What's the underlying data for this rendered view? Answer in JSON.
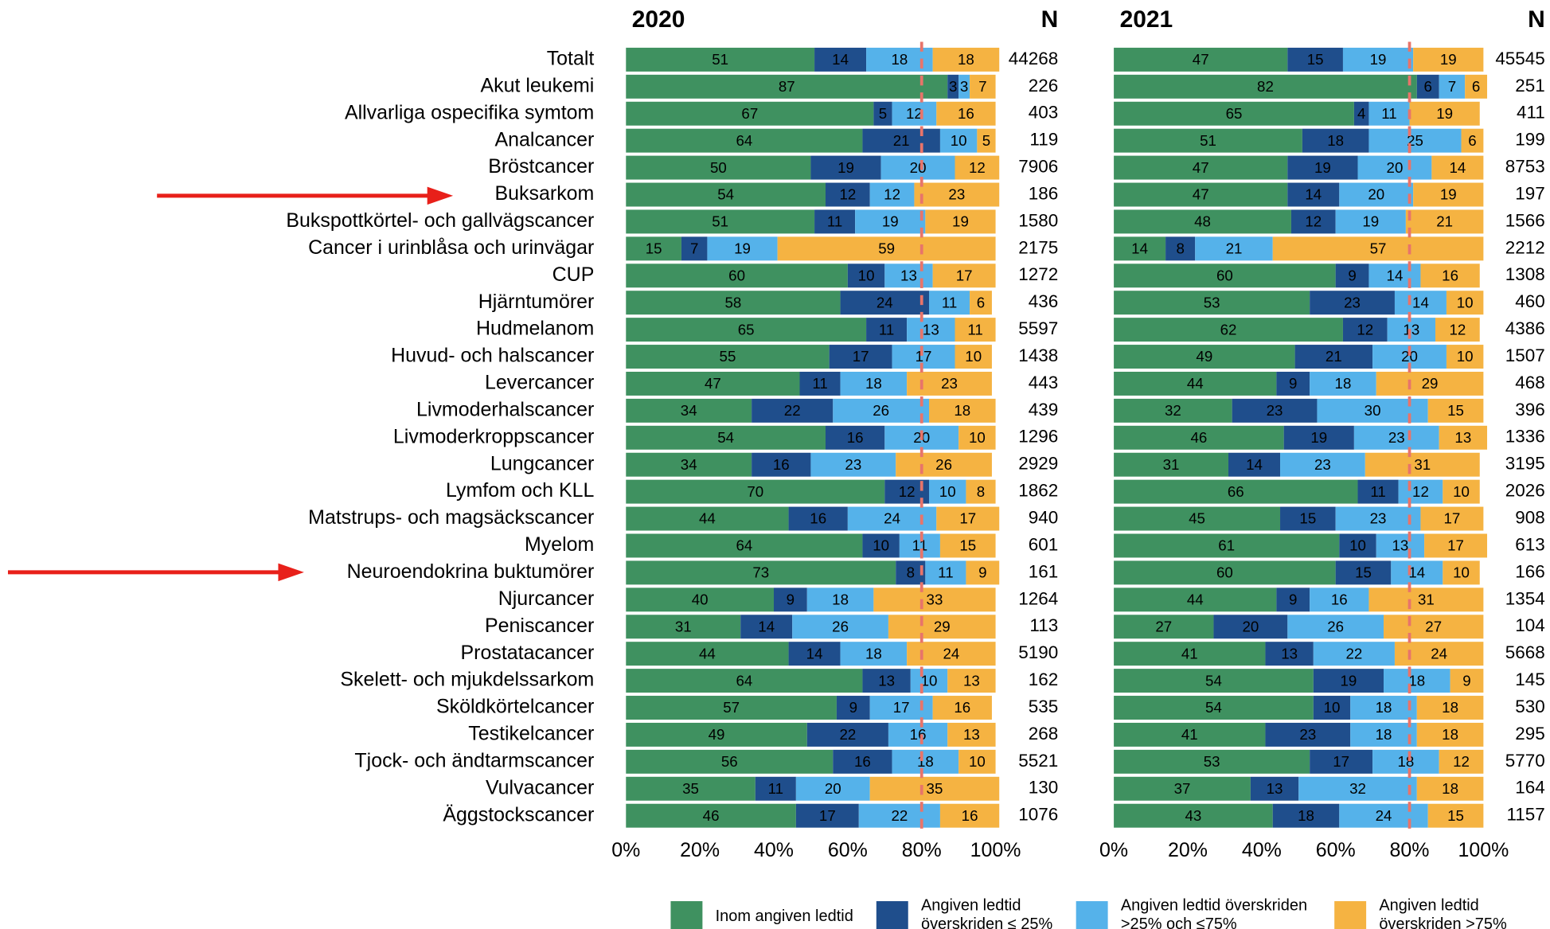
{
  "chart_data": [
    {
      "type": "stacked_barh",
      "title": "2020",
      "n_label": "N",
      "reference_line": 80,
      "xlim": [
        0,
        100
      ],
      "xticks": [
        {
          "value": 0,
          "label": "0%"
        },
        {
          "value": 20,
          "label": "20%"
        },
        {
          "value": 40,
          "label": "40%"
        },
        {
          "value": 60,
          "label": "60%"
        },
        {
          "value": 80,
          "label": "80%"
        },
        {
          "value": 100,
          "label": "100%"
        }
      ],
      "categories": [
        "Totalt",
        "Akut leukemi",
        "Allvarliga ospecifika symtom",
        "Analcancer",
        "Bröstcancer",
        "Buksarkom",
        "Bukspottkörtel- och gallvägscancer",
        "Cancer i urinblåsa och urinvägar",
        "CUP",
        "Hjärntumörer",
        "Hudmelanom",
        "Huvud- och halscancer",
        "Levercancer",
        "Livmoderhalscancer",
        "Livmoderkroppscancer",
        "Lungcancer",
        "Lymfom och KLL",
        "Matstrups- och magsäckscancer",
        "Myelom",
        "Neuroendokrina buktumörer",
        "Njurcancer",
        "Peniscancer",
        "Prostatacancer",
        "Skelett- och mjukdelssarkom",
        "Sköldkörtelcancer",
        "Testikelcancer",
        "Tjock- och ändtarmscancer",
        "Vulvacancer",
        "Äggstockscancer"
      ],
      "n_values": [
        44268,
        226,
        403,
        119,
        7906,
        186,
        1580,
        2175,
        1272,
        436,
        5597,
        1438,
        443,
        439,
        1296,
        2929,
        1862,
        940,
        601,
        161,
        1264,
        113,
        5190,
        162,
        535,
        268,
        5521,
        130,
        1076
      ],
      "series": [
        {
          "name": "Inom angiven ledtid",
          "color": "#3f9160",
          "values": [
            51,
            87,
            67,
            64,
            50,
            54,
            51,
            15,
            60,
            58,
            65,
            55,
            47,
            34,
            54,
            34,
            70,
            44,
            64,
            73,
            40,
            31,
            44,
            64,
            57,
            49,
            56,
            35,
            46
          ]
        },
        {
          "name": "Angiven ledtid överskriden ≤ 25%",
          "color": "#1f4e8c",
          "values": [
            14,
            3,
            5,
            21,
            19,
            12,
            11,
            7,
            10,
            24,
            11,
            17,
            11,
            22,
            16,
            16,
            12,
            16,
            10,
            8,
            9,
            14,
            14,
            13,
            9,
            22,
            16,
            11,
            17
          ]
        },
        {
          "name": "Angiven ledtid överskriden >25% och ≤75%",
          "color": "#55b2ea",
          "values": [
            18,
            3,
            12,
            10,
            20,
            12,
            19,
            19,
            13,
            11,
            13,
            17,
            18,
            26,
            20,
            23,
            10,
            24,
            11,
            11,
            18,
            26,
            18,
            10,
            17,
            16,
            18,
            20,
            22
          ]
        },
        {
          "name": "Angiven ledtid överskriden >75%",
          "color": "#f5b342",
          "values": [
            18,
            7,
            16,
            5,
            12,
            23,
            19,
            59,
            17,
            6,
            11,
            10,
            23,
            18,
            10,
            26,
            8,
            17,
            15,
            9,
            33,
            29,
            24,
            13,
            16,
            13,
            10,
            35,
            16
          ]
        }
      ]
    },
    {
      "type": "stacked_barh",
      "title": "2021",
      "n_label": "N",
      "reference_line": 80,
      "xlim": [
        0,
        100
      ],
      "xticks": [
        {
          "value": 0,
          "label": "0%"
        },
        {
          "value": 20,
          "label": "20%"
        },
        {
          "value": 40,
          "label": "40%"
        },
        {
          "value": 60,
          "label": "60%"
        },
        {
          "value": 80,
          "label": "80%"
        },
        {
          "value": 100,
          "label": "100%"
        }
      ],
      "n_values": [
        45545,
        251,
        411,
        199,
        8753,
        197,
        1566,
        2212,
        1308,
        460,
        4386,
        1507,
        468,
        396,
        1336,
        3195,
        2026,
        908,
        613,
        166,
        1354,
        104,
        5668,
        145,
        530,
        295,
        5770,
        164,
        1157
      ],
      "series": [
        {
          "color": "#3f9160",
          "values": [
            47,
            82,
            65,
            51,
            47,
            47,
            48,
            14,
            60,
            53,
            62,
            49,
            44,
            32,
            46,
            31,
            66,
            45,
            61,
            60,
            44,
            27,
            41,
            54,
            54,
            41,
            53,
            37,
            43
          ]
        },
        {
          "color": "#1f4e8c",
          "values": [
            15,
            6,
            4,
            18,
            19,
            14,
            12,
            8,
            9,
            23,
            12,
            21,
            9,
            23,
            19,
            14,
            11,
            15,
            10,
            15,
            9,
            20,
            13,
            19,
            10,
            23,
            17,
            13,
            18
          ]
        },
        {
          "color": "#55b2ea",
          "values": [
            19,
            7,
            11,
            25,
            20,
            20,
            19,
            21,
            14,
            14,
            13,
            20,
            18,
            30,
            23,
            23,
            12,
            23,
            13,
            14,
            16,
            26,
            22,
            18,
            18,
            18,
            18,
            32,
            24
          ]
        },
        {
          "color": "#f5b342",
          "values": [
            19,
            6,
            19,
            6,
            14,
            19,
            21,
            57,
            16,
            10,
            12,
            10,
            29,
            15,
            13,
            31,
            10,
            17,
            17,
            10,
            31,
            27,
            24,
            9,
            18,
            18,
            12,
            18,
            15
          ]
        }
      ]
    }
  ]
}
